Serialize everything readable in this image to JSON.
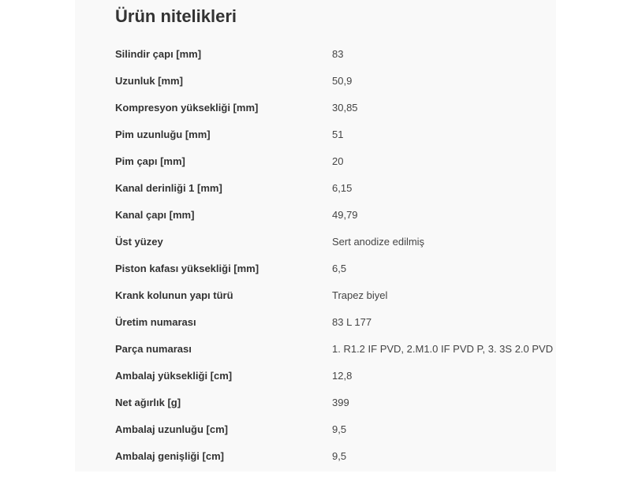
{
  "title": "Ürün nitelikleri",
  "rows": [
    {
      "label": "Silindir çapı [mm]",
      "value": "83"
    },
    {
      "label": "Uzunluk [mm]",
      "value": "50,9"
    },
    {
      "label": "Kompresyon yüksekliği [mm]",
      "value": "30,85"
    },
    {
      "label": "Pim uzunluğu [mm]",
      "value": "51"
    },
    {
      "label": "Pim çapı [mm]",
      "value": "20"
    },
    {
      "label": "Kanal derinliği 1 [mm]",
      "value": "6,15"
    },
    {
      "label": "Kanal çapı [mm]",
      "value": "49,79"
    },
    {
      "label": "Üst yüzey",
      "value": "Sert anodize edilmiş"
    },
    {
      "label": "Piston kafası yüksekliği [mm]",
      "value": "6,5"
    },
    {
      "label": "Krank kolunun yapı türü",
      "value": "Trapez biyel"
    },
    {
      "label": "Üretim numarası",
      "value": "83 L 177"
    },
    {
      "label": "Parça numarası",
      "value": "1. R1.2 IF PVD, 2.M1.0 IF PVD P, 3. 3S 2.0 PVD"
    },
    {
      "label": "Ambalaj yüksekliği [cm]",
      "value": "12,8"
    },
    {
      "label": "Net ağırlık [g]",
      "value": "399"
    },
    {
      "label": "Ambalaj uzunluğu [cm]",
      "value": "9,5"
    },
    {
      "label": "Ambalaj genişliği [cm]",
      "value": "9,5"
    }
  ]
}
